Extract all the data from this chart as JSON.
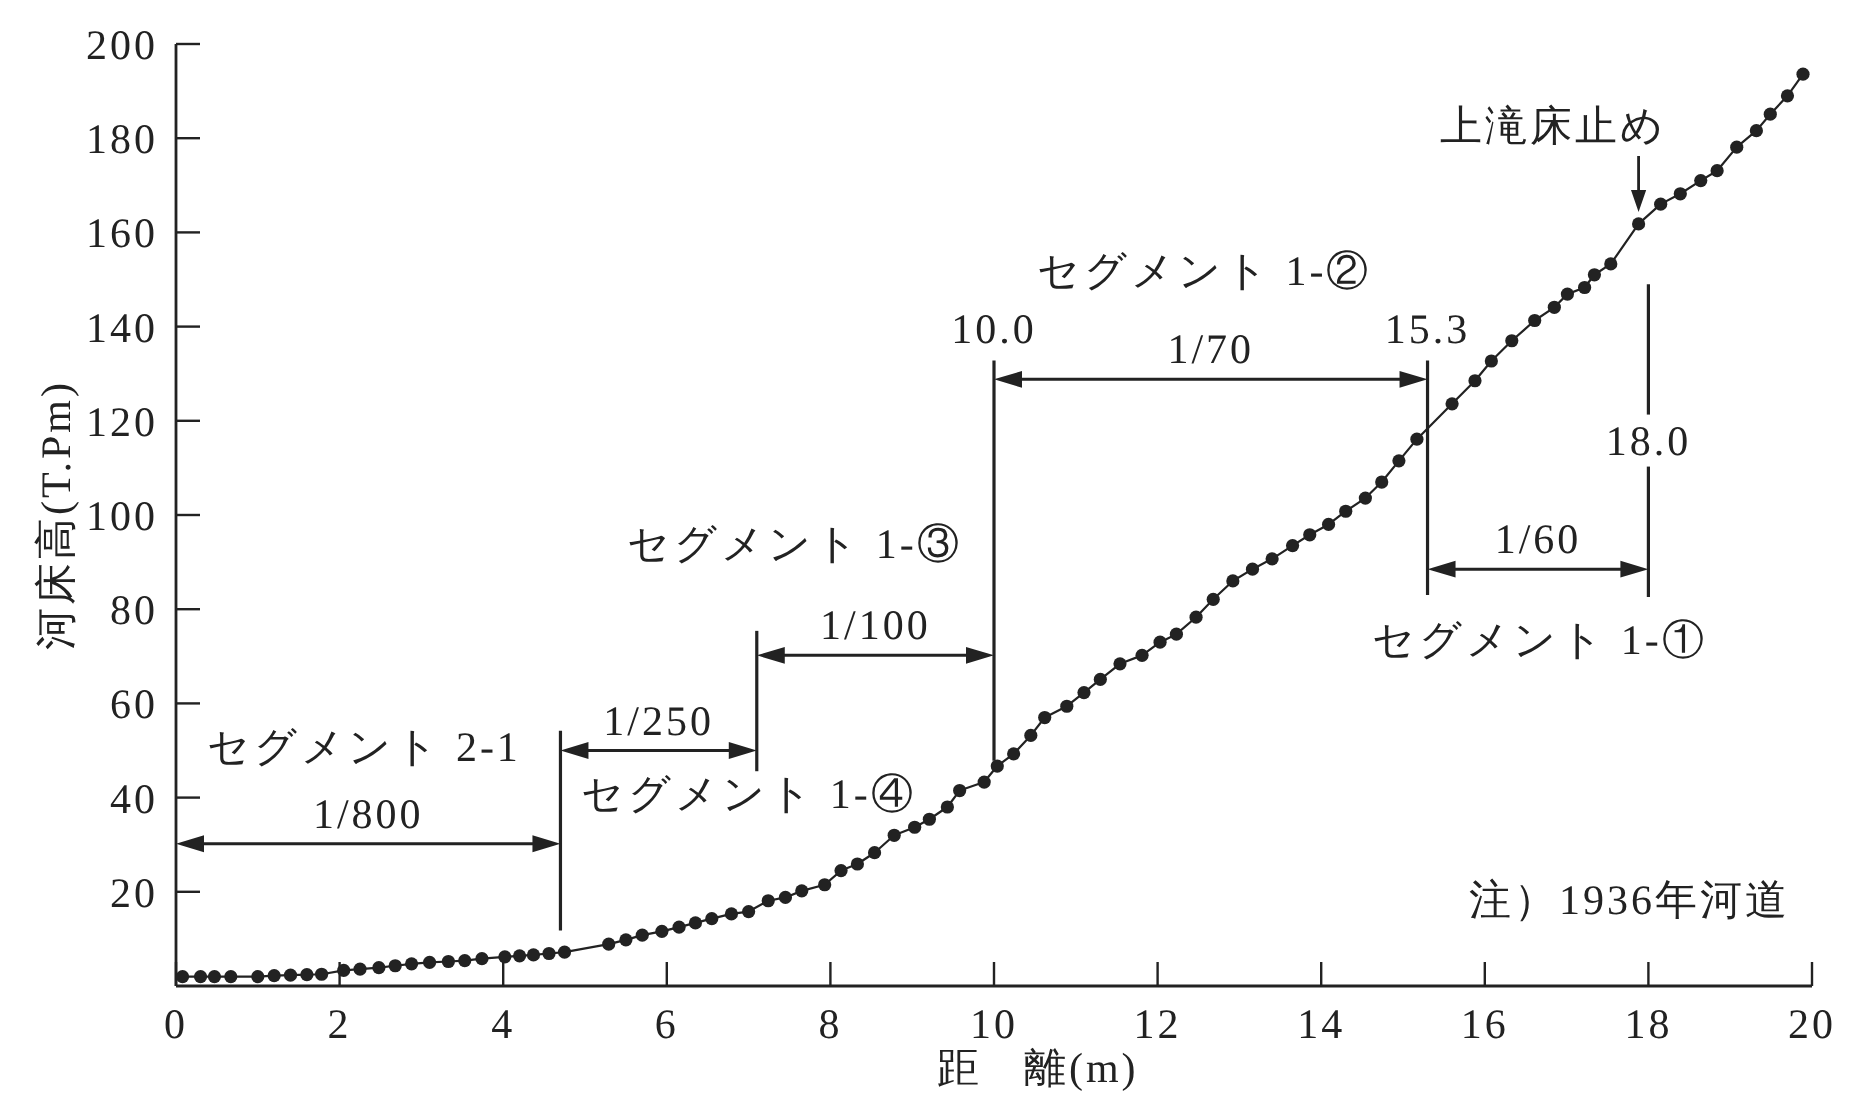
{
  "chart_data": {
    "type": "line",
    "xlabel": "距 離(m)",
    "ylabel": "河床高(T.Pm)",
    "x": [
      0.08,
      0.3,
      0.47,
      0.67,
      1.0,
      1.2,
      1.4,
      1.6,
      1.78,
      2.05,
      2.25,
      2.48,
      2.68,
      2.88,
      3.1,
      3.33,
      3.53,
      3.74,
      4.02,
      4.2,
      4.37,
      4.56,
      4.75,
      5.29,
      5.5,
      5.7,
      5.94,
      6.15,
      6.35,
      6.55,
      6.79,
      7.0,
      7.24,
      7.45,
      7.65,
      7.93,
      8.13,
      8.33,
      8.54,
      8.78,
      9.03,
      9.21,
      9.43,
      9.58,
      9.88,
      10.04,
      10.24,
      10.45,
      10.62,
      10.89,
      11.1,
      11.3,
      11.54,
      11.81,
      12.03,
      12.23,
      12.47,
      12.68,
      12.92,
      13.16,
      13.4,
      13.65,
      13.86,
      14.09,
      14.3,
      14.54,
      14.74,
      14.95,
      15.17,
      15.6,
      15.88,
      16.08,
      16.33,
      16.61,
      16.85,
      17.01,
      17.22,
      17.34,
      17.54,
      17.88,
      18.15,
      18.39,
      18.64,
      18.84,
      19.08,
      19.32,
      19.49,
      19.7,
      19.89
    ],
    "values": [
      2,
      2,
      2,
      2,
      2,
      2.2,
      2.3,
      2.4,
      2.5,
      3.3,
      3.6,
      3.9,
      4.3,
      4.7,
      5,
      5.2,
      5.4,
      5.8,
      6.2,
      6.4,
      6.6,
      6.9,
      7.2,
      8.9,
      9.8,
      10.8,
      11.6,
      12.5,
      13.4,
      14.3,
      15.3,
      15.8,
      18.1,
      18.8,
      20.2,
      21.5,
      24.5,
      25.9,
      28.3,
      32,
      33.7,
      35.4,
      38,
      41.5,
      43.3,
      46.7,
      49.3,
      53.2,
      57,
      59.4,
      62.3,
      65.1,
      68.4,
      70.2,
      73,
      74.7,
      78.3,
      82.1,
      86,
      88.5,
      90.7,
      93.5,
      95.8,
      98,
      100.8,
      103.6,
      107,
      111.5,
      116.1,
      123.6,
      128.5,
      132.7,
      137,
      141.3,
      144.1,
      146.9,
      148.3,
      151,
      153.3,
      161.8,
      166,
      168.2,
      171,
      173.1,
      178.1,
      181.6,
      185.1,
      189,
      193.6
    ],
    "color": "#222222",
    "marker": "circle",
    "line_style": "solid",
    "xlim": [
      0,
      20
    ],
    "xticks": [
      0,
      2,
      4,
      6,
      8,
      10,
      12,
      14,
      16,
      18,
      20
    ],
    "ylim": [
      0,
      200
    ],
    "yticks": [
      20,
      40,
      60,
      80,
      100,
      120,
      140,
      160,
      180,
      200
    ],
    "ref_lines": [
      {
        "axis": "x",
        "value": 4.7
      },
      {
        "axis": "x",
        "value": 7.1
      },
      {
        "axis": "x",
        "value": 10.0,
        "label": "10.0"
      },
      {
        "axis": "x",
        "value": 15.3,
        "label": "15.3"
      },
      {
        "axis": "x",
        "value": 18.0,
        "label": "18.0"
      }
    ],
    "annotations": [
      "1/800",
      "1/250",
      "1/100",
      "1/70",
      "1/60",
      "セグメント 2-1",
      "セグメント 1-④",
      "セグメント 1-③",
      "セグメント 1-②",
      "セグメント 1-①",
      {
        "text": "上滝床止め",
        "x": 17.88,
        "y": 161.8
      },
      "注）1936年河道"
    ]
  }
}
